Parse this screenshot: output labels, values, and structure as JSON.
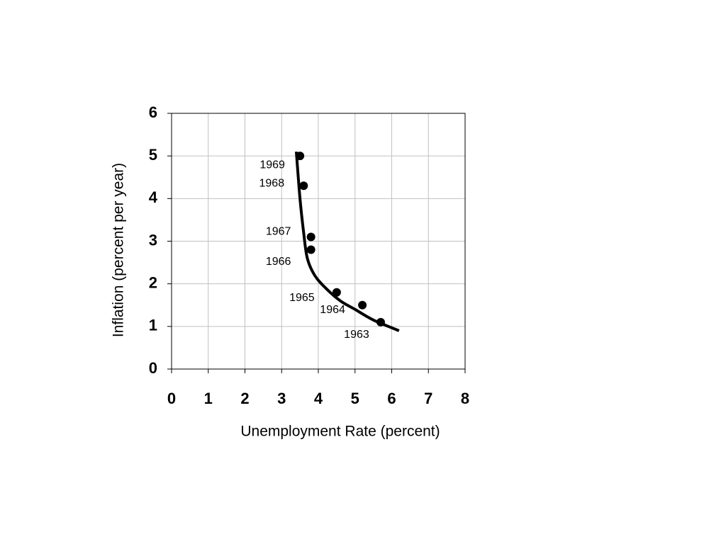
{
  "chart_data": {
    "type": "scatter",
    "xlabel": "Unemployment Rate (percent)",
    "ylabel": "Inflation (percent per year)",
    "xlim": [
      0,
      8
    ],
    "ylim": [
      0,
      6
    ],
    "xticks": [
      0,
      1,
      2,
      3,
      4,
      5,
      6,
      7,
      8
    ],
    "yticks": [
      0,
      1,
      2,
      3,
      4,
      5,
      6
    ],
    "grid": true,
    "series": [
      {
        "type": "scatter",
        "color": "#000000",
        "x": [
          3.5,
          3.6,
          3.8,
          3.8,
          4.5,
          5.2,
          5.7
        ],
        "values": [
          5.0,
          4.3,
          3.1,
          2.8,
          1.8,
          1.5,
          1.1
        ],
        "labels": [
          "1969",
          "1968",
          "1967",
          "1966",
          "1965",
          "1964",
          "1963"
        ]
      },
      {
        "type": "line",
        "color": "#000000",
        "x": [
          3.4,
          3.5,
          3.6,
          3.7,
          3.9,
          4.2,
          4.6,
          5.0,
          5.5,
          6.2
        ],
        "values": [
          5.1,
          4.0,
          3.2,
          2.6,
          2.2,
          1.9,
          1.6,
          1.4,
          1.15,
          0.9
        ]
      }
    ]
  }
}
